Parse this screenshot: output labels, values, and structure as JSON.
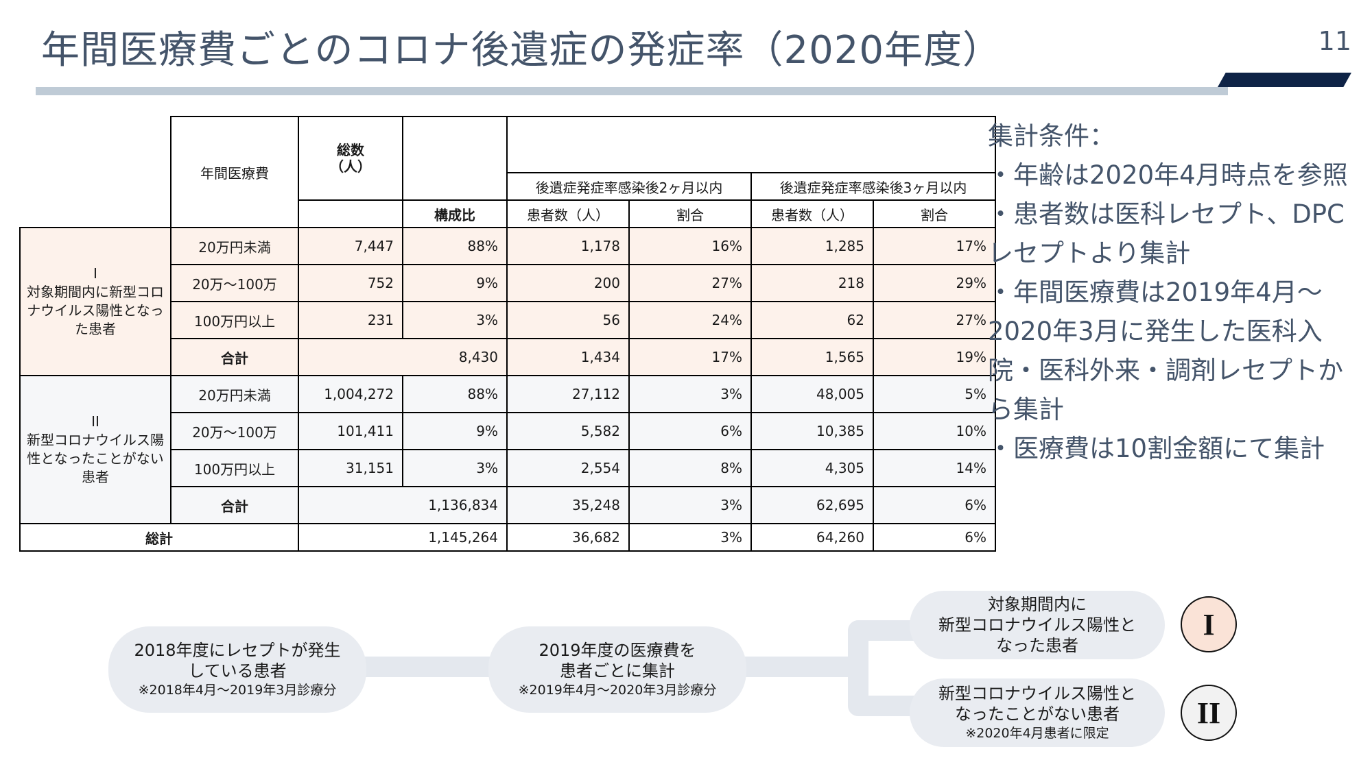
{
  "header": {
    "title": "年間医療費ごとのコロナ後遺症の発症率（2020年度）",
    "page_number": "11"
  },
  "table": {
    "headers": {
      "annual_cost": "年間医療費",
      "total_count_l1": "総数",
      "total_count_l2": "（人）",
      "ratio": "構成比",
      "within_2m": "後遺症発症率感染後2ヶ月以内",
      "within_3m": "後遺症発症率感染後3ヶ月以内",
      "patients_2m": "患者数（人）",
      "rate_2m": "割合",
      "patients_3m": "患者数（人）",
      "rate_3m": "割合"
    },
    "groups": [
      {
        "roman": "I",
        "label": "対象期間内に新型コロナウイルス陽性となった患者",
        "rows": [
          {
            "cost": "20万円未満",
            "total": "7,447",
            "ratio": "88%",
            "p2": "1,178",
            "r2": "16%",
            "p3": "1,285",
            "r3": "17%"
          },
          {
            "cost": "20万～100万",
            "total": "752",
            "ratio": "9%",
            "p2": "200",
            "r2": "27%",
            "p3": "218",
            "r3": "29%"
          },
          {
            "cost": "100万円以上",
            "total": "231",
            "ratio": "3%",
            "p2": "56",
            "r2": "24%",
            "p3": "62",
            "r3": "27%"
          }
        ],
        "subtotal": {
          "label": "合計",
          "total": "8,430",
          "p2": "1,434",
          "r2": "17%",
          "p3": "1,565",
          "r3": "19%"
        }
      },
      {
        "roman": "II",
        "label": "新型コロナウイルス陽性となったことがない患者",
        "rows": [
          {
            "cost": "20万円未満",
            "total": "1,004,272",
            "ratio": "88%",
            "p2": "27,112",
            "r2": "3%",
            "p3": "48,005",
            "r3": "5%"
          },
          {
            "cost": "20万～100万",
            "total": "101,411",
            "ratio": "9%",
            "p2": "5,582",
            "r2": "6%",
            "p3": "10,385",
            "r3": "10%"
          },
          {
            "cost": "100万円以上",
            "total": "31,151",
            "ratio": "3%",
            "p2": "2,554",
            "r2": "8%",
            "p3": "4,305",
            "r3": "14%"
          }
        ],
        "subtotal": {
          "label": "合計",
          "total": "1,136,834",
          "p2": "35,248",
          "r2": "3%",
          "p3": "62,695",
          "r3": "6%"
        }
      }
    ],
    "grand_total": {
      "label": "総計",
      "total": "1,145,264",
      "p2": "36,682",
      "r2": "3%",
      "p3": "64,260",
      "r3": "6%"
    }
  },
  "notes": {
    "heading": "集計条件：",
    "lines": [
      "・年齢は2020年4月時点を参照",
      "・患者数は医科レセプト、DPC",
      "レセプトより集計",
      "・年間医療費は2019年4月～",
      "2020年3月に発生した医科入",
      "院・医科外来・調剤レセプトか",
      "ら集計",
      "・医療費は10割金額にて集計"
    ]
  },
  "flow": {
    "step1": {
      "l1": "2018年度にレセプトが発生",
      "l2": "している患者",
      "note": "※2018年4月～2019年3月診療分"
    },
    "step2": {
      "l1": "2019年度の医療費を",
      "l2": "患者ごとに集計",
      "note": "※2019年4月～2020年3月診療分"
    },
    "out1": {
      "l1": "対象期間内に",
      "l2": "新型コロナウイルス陽性と",
      "l3": "なった患者"
    },
    "out2": {
      "l1": "新型コロナウイルス陽性と",
      "l2": "なったことがない患者",
      "note": "※2020年4月患者に限定"
    },
    "badge1": "I",
    "badge2": "II",
    "colors": {
      "badge1_fill": "#fae3d7",
      "badge2_fill": "#f2f2f2",
      "pill_fill": "#e9ecf1"
    }
  },
  "colors": {
    "title": "#44546a",
    "accent": "#0e2346",
    "rule": "#bfcbd6",
    "group1_bg": "#fdf2eb",
    "group2_bg": "#f6f7f9"
  }
}
